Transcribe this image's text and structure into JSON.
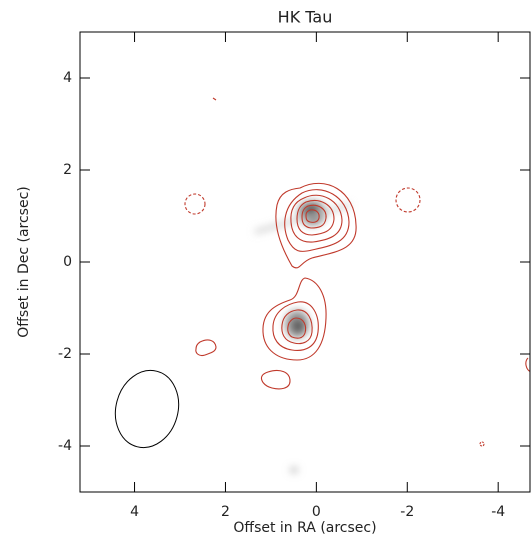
{
  "chart_data": {
    "type": "image",
    "title": "HK Tau",
    "x_label": "Offset in RA (arcsec)",
    "y_label": "Offset in Dec (arcsec)",
    "xlim": [
      5.2,
      -4.7
    ],
    "ylim": [
      -5,
      5
    ],
    "xticks": [
      4,
      2,
      0,
      -2,
      -4
    ],
    "yticks": [
      -4,
      -2,
      0,
      2,
      4
    ],
    "contour_color": "#c0392b"
  }
}
